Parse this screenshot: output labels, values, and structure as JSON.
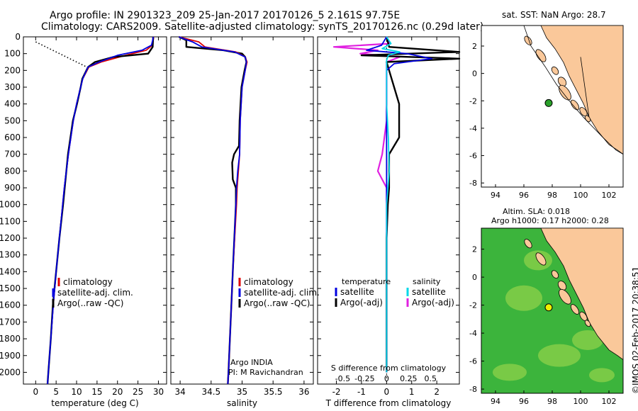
{
  "header": {
    "line1": "Argo profile: IN 2901323_209 25-Jan-2017 20170126_5 2.161S 97.75E",
    "line2": "Climatology: CARS2009. Satellite-adjusted climatology: synTS_20170126.nc (0.29d later)"
  },
  "map_sst": {
    "title": "sat. SST: NaN Argo: 28.7"
  },
  "map_sla": {
    "title1": "Altim. SLA: 0.018",
    "title2": "Argo h1000: 0.17 h2000: 0.28"
  },
  "credit": "©IMOS 02-Feb-2017 20:38:51",
  "colors": {
    "clim": "#e00000",
    "sat": "#0000e0",
    "argo": "#000000",
    "sal_sat": "#00d8e8",
    "sal_argo": "#e020e0",
    "land": "#fac89a",
    "ocean_green": "#3cb43c",
    "argo_dot_sst": "#2aa02a",
    "argo_dot_sla": "#f0f000"
  },
  "chart_data": [
    {
      "type": "line",
      "name": "temperature profile",
      "xlabel": "temperature (deg C)",
      "ylabel": "",
      "xlim": [
        -3,
        32
      ],
      "ylim": [
        2070,
        0
      ],
      "xticks": [
        0,
        5,
        10,
        15,
        20,
        25,
        30
      ],
      "yticks": [
        0,
        100,
        200,
        300,
        400,
        500,
        600,
        700,
        800,
        900,
        1000,
        1100,
        1200,
        1300,
        1400,
        1500,
        1600,
        1700,
        1800,
        1900,
        2000
      ],
      "legend": [
        "climatology",
        "satellite-adj. clim.",
        "Argo(..raw -QC)"
      ],
      "series": [
        {
          "name": "climatology",
          "depth": [
            0,
            10,
            50,
            80,
            110,
            150,
            180,
            250,
            300,
            400,
            500,
            600,
            700,
            800,
            900,
            1000,
            1200,
            1400,
            1600,
            1800,
            2000,
            2070
          ],
          "values": [
            28.8,
            28.8,
            28.5,
            27.0,
            22.0,
            16.0,
            13.0,
            11.5,
            11.0,
            10.0,
            9.2,
            8.6,
            8.0,
            7.5,
            7.0,
            6.6,
            5.8,
            5.0,
            4.3,
            3.7,
            3.1,
            2.9
          ]
        },
        {
          "name": "satellite-adj. clim.",
          "depth": [
            0,
            10,
            50,
            80,
            110,
            150,
            180,
            250,
            300,
            400,
            500,
            600,
            700,
            800,
            900,
            1000,
            1200,
            1400,
            1600,
            1800,
            2000,
            2070
          ],
          "values": [
            28.7,
            28.7,
            28.3,
            26.0,
            20.0,
            15.5,
            12.8,
            11.5,
            11.0,
            10.0,
            9.2,
            8.6,
            8.0,
            7.5,
            7.0,
            6.6,
            5.8,
            5.0,
            4.3,
            3.7,
            3.1,
            2.9
          ]
        },
        {
          "name": "Argo(..raw -QC)",
          "depth": [
            0,
            10,
            60,
            100,
            120,
            150,
            180,
            250,
            300,
            400,
            500,
            600,
            700,
            800,
            900,
            1000,
            1200,
            1400,
            1600,
            1800,
            2000,
            2070
          ],
          "values": [
            28.7,
            28.7,
            28.6,
            27.5,
            19.0,
            14.5,
            12.8,
            11.4,
            11.0,
            10.1,
            9.1,
            8.5,
            7.9,
            7.5,
            7.1,
            6.7,
            5.8,
            5.0,
            4.2,
            3.7,
            3.1,
            2.9
          ]
        }
      ]
    },
    {
      "type": "line",
      "name": "salinity profile",
      "xlabel": "salinity",
      "xlim": [
        33.85,
        36.15
      ],
      "ylim": [
        2070,
        0
      ],
      "xticks": [
        34,
        34.5,
        35,
        35.5,
        36
      ],
      "legend": [
        "climatology",
        "satellite-adj. clim.",
        "Argo(..raw -QC)"
      ],
      "annotation1": "Argo INDIA",
      "annotation2": "PI: M Ravichandran",
      "series": [
        {
          "name": "climatology",
          "depth": [
            0,
            30,
            60,
            90,
            120,
            150,
            200,
            300,
            500,
            700,
            800,
            900,
            1000,
            1400,
            2000,
            2070
          ],
          "values": [
            33.98,
            34.3,
            34.4,
            34.9,
            35.05,
            35.08,
            35.05,
            35.0,
            34.97,
            34.96,
            34.94,
            34.92,
            34.91,
            34.85,
            34.78,
            34.77
          ]
        },
        {
          "name": "satellite-adj. clim.",
          "depth": [
            0,
            30,
            60,
            90,
            120,
            150,
            200,
            300,
            500,
            700,
            800,
            900,
            1000,
            1400,
            2000,
            2070
          ],
          "values": [
            33.98,
            34.2,
            34.35,
            34.88,
            35.05,
            35.07,
            35.05,
            35.0,
            34.97,
            34.96,
            34.93,
            34.91,
            34.9,
            34.85,
            34.78,
            34.77
          ]
        },
        {
          "name": "Argo(..raw -QC)",
          "depth": [
            0,
            20,
            60,
            80,
            100,
            120,
            150,
            200,
            300,
            500,
            650,
            700,
            750,
            850,
            900,
            1000,
            1400,
            2000,
            2070
          ],
          "values": [
            33.98,
            34.1,
            34.1,
            34.7,
            35.0,
            35.05,
            35.07,
            35.04,
            34.99,
            34.96,
            34.95,
            34.87,
            34.84,
            34.85,
            34.9,
            34.9,
            34.85,
            34.78,
            34.77
          ]
        }
      ]
    },
    {
      "type": "line",
      "name": "difference from climatology",
      "xlabel": "T difference from climatology",
      "top_axis_label": "S difference from climatology",
      "xlim": [
        -2.75,
        2.9
      ],
      "ylim": [
        2070,
        0
      ],
      "xticks": [
        -2,
        -1,
        0,
        1,
        2
      ],
      "top_ticks": [
        "-0.5",
        "-0.25",
        "0",
        "0.25",
        "0.5"
      ],
      "legend_temperature": "temperature",
      "legend_salinity": "salinity",
      "legend": [
        "satellite",
        "Argo(-adj)",
        "satellite",
        "Argo(-adj)"
      ],
      "series": [
        {
          "name": "T satellite",
          "depth": [
            0,
            50,
            80,
            100,
            130,
            160,
            200,
            300,
            500,
            700,
            900,
            1200,
            1600,
            2000
          ],
          "values": [
            0,
            -0.2,
            -0.8,
            0.8,
            1.8,
            0.3,
            0.0,
            0.0,
            0.0,
            0.0,
            0.0,
            0.0,
            0.0,
            0.0
          ]
        },
        {
          "name": "T Argo(-adj)",
          "depth": [
            0,
            60,
            90,
            110,
            130,
            150,
            200,
            250,
            300,
            400,
            500,
            600,
            700,
            800,
            900,
            1000,
            1200,
            1600,
            2000
          ],
          "values": [
            0,
            0.1,
            2.9,
            -1.0,
            2.9,
            0.0,
            0.1,
            0.2,
            0.3,
            0.5,
            0.5,
            0.5,
            0.1,
            0.1,
            0.1,
            0.05,
            0.0,
            0.0,
            0.0
          ]
        },
        {
          "name": "S satellite",
          "depth": [
            0,
            40,
            70,
            90,
            110,
            140,
            200,
            400,
            600,
            800,
            1000,
            1200,
            1400,
            2000
          ],
          "values": [
            0,
            0.05,
            -0.05,
            0.15,
            0.02,
            0.0,
            0.0,
            0.0,
            0.02,
            0.03,
            0.0,
            0.0,
            0.0,
            0.0
          ]
        },
        {
          "name": "S Argo(-adj)",
          "depth": [
            0,
            40,
            60,
            80,
            100,
            120,
            150,
            200,
            300,
            500,
            700,
            800,
            850,
            900,
            1000,
            1400,
            2000
          ],
          "values": [
            0,
            0.04,
            -0.6,
            -0.1,
            -0.3,
            0.15,
            0.0,
            0.0,
            0.0,
            0.0,
            -0.05,
            -0.1,
            -0.05,
            0.0,
            0.0,
            0.0,
            0.0
          ]
        }
      ]
    },
    {
      "type": "map",
      "name": "sst map",
      "xlim": [
        93,
        103
      ],
      "ylim": [
        -8.3,
        3.5
      ],
      "xticks": [
        94,
        96,
        98,
        100,
        102
      ],
      "yticks": [
        -8,
        -6,
        -4,
        -2,
        0,
        2
      ],
      "argo_position": {
        "lon": 97.75,
        "lat": -2.161
      }
    },
    {
      "type": "map",
      "name": "sla map",
      "xlim": [
        93,
        103
      ],
      "ylim": [
        -8.3,
        3.5
      ],
      "xticks": [
        94,
        96,
        98,
        100,
        102
      ],
      "yticks": [
        -8,
        -6,
        -4,
        -2,
        0,
        2
      ],
      "argo_position": {
        "lon": 97.75,
        "lat": -2.161
      }
    }
  ]
}
